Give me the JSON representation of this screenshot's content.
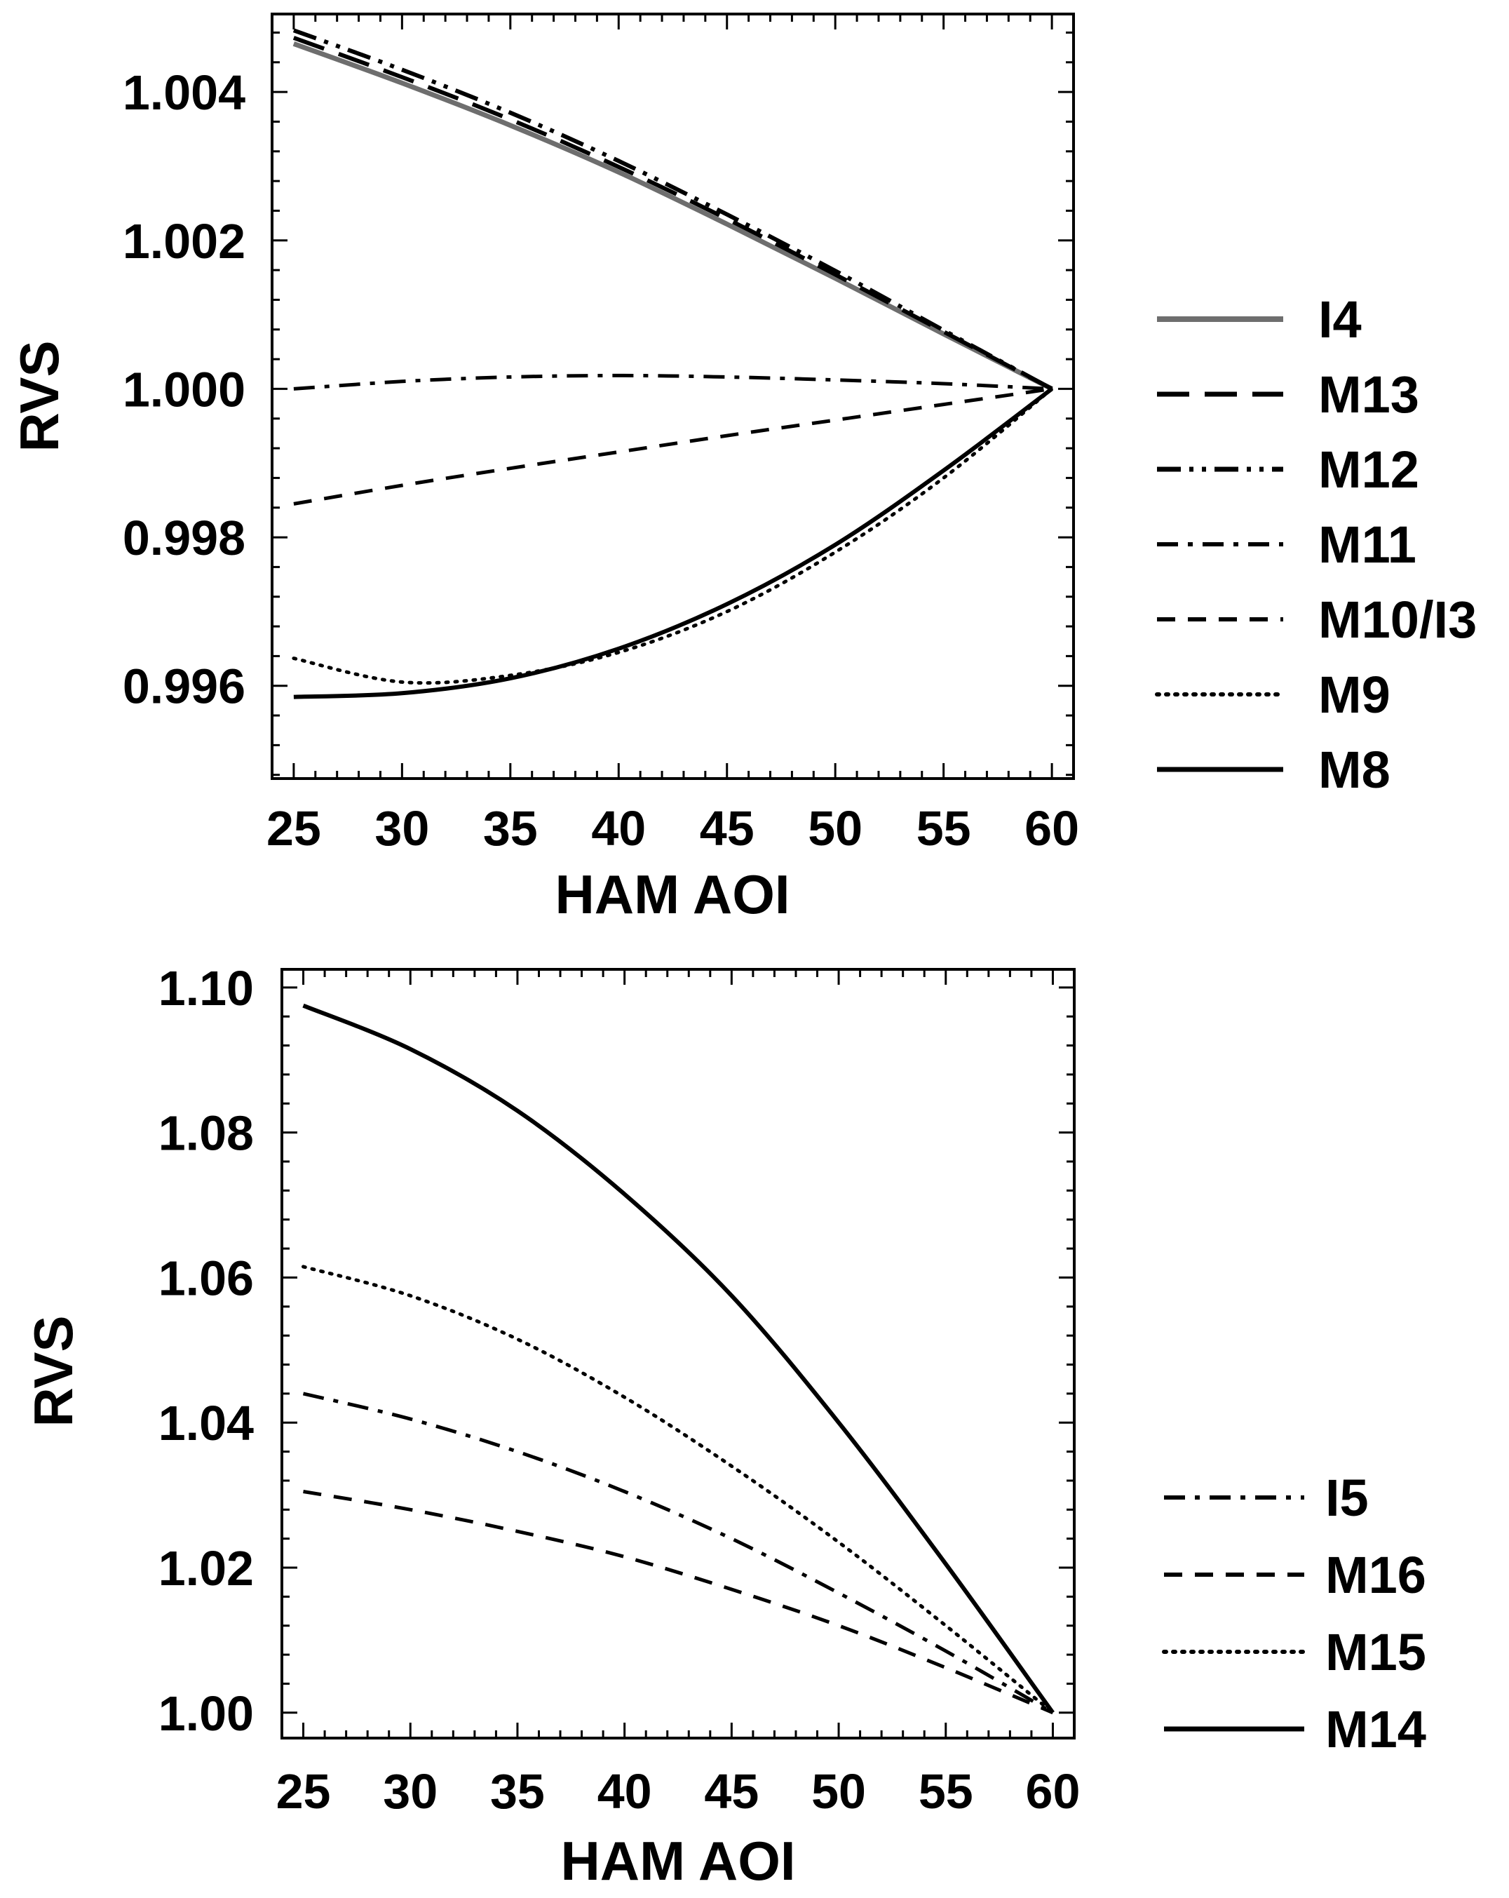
{
  "chart_data": [
    {
      "type": "line",
      "title": "",
      "xlabel": "HAM AOI",
      "ylabel": "RVS",
      "xlim": [
        24,
        61
      ],
      "ylim": [
        0.99475,
        1.00505
      ],
      "xticks": [
        "25",
        "30",
        "35",
        "40",
        "45",
        "50",
        "55",
        "60"
      ],
      "xtick_values": [
        25,
        30,
        35,
        40,
        45,
        50,
        55,
        60
      ],
      "yticks": [
        "0.996",
        "0.998",
        "1.000",
        "1.002",
        "1.004"
      ],
      "ytick_values": [
        0.996,
        0.998,
        1.0,
        1.002,
        1.004
      ],
      "legend_position": "right",
      "x": [
        25,
        30,
        35,
        40,
        45,
        50,
        55,
        60
      ],
      "series": [
        {
          "name": "I4",
          "style": "solid-gray",
          "values": [
            1.00465,
            1.00412,
            1.00355,
            1.00292,
            1.00222,
            1.00149,
            1.00074,
            1.0
          ]
        },
        {
          "name": "M13",
          "style": "longdash",
          "values": [
            1.00473,
            1.0042,
            1.00363,
            1.00299,
            1.00229,
            1.00154,
            1.00077,
            1.0
          ]
        },
        {
          "name": "M12",
          "style": "dashdotdot",
          "values": [
            1.00483,
            1.0043,
            1.00372,
            1.00307,
            1.00235,
            1.00159,
            1.00079,
            1.0
          ]
        },
        {
          "name": "M11",
          "style": "dashdot",
          "values": [
            1.0,
            1.0001,
            1.00016,
            1.00018,
            1.00016,
            1.00012,
            1.00007,
            1.0
          ]
        },
        {
          "name": "M10/I3",
          "style": "dash",
          "values": [
            0.99845,
            0.9987,
            0.99893,
            0.99915,
            0.99937,
            0.99958,
            0.99979,
            1.0
          ]
        },
        {
          "name": "M9",
          "style": "dot",
          "values": [
            0.99637,
            0.99605,
            0.99614,
            0.99645,
            0.997,
            0.9978,
            0.9988,
            1.0
          ]
        },
        {
          "name": "M8",
          "style": "solid",
          "values": [
            0.99585,
            0.9959,
            0.9961,
            0.9965,
            0.9971,
            0.9979,
            0.9989,
            1.0
          ]
        }
      ]
    },
    {
      "type": "line",
      "title": "",
      "xlabel": "HAM AOI",
      "ylabel": "RVS",
      "xlim": [
        24,
        61
      ],
      "ylim": [
        0.9965,
        1.1025
      ],
      "xticks": [
        "25",
        "30",
        "35",
        "40",
        "45",
        "50",
        "55",
        "60"
      ],
      "xtick_values": [
        25,
        30,
        35,
        40,
        45,
        50,
        55,
        60
      ],
      "yticks": [
        "1.00",
        "1.02",
        "1.04",
        "1.06",
        "1.08",
        "1.10"
      ],
      "ytick_values": [
        1.0,
        1.02,
        1.04,
        1.06,
        1.08,
        1.1
      ],
      "legend_position": "bottom-right",
      "x": [
        25,
        30,
        35,
        40,
        45,
        50,
        55,
        60
      ],
      "series": [
        {
          "name": "I5",
          "style": "dashdot",
          "values": [
            1.044,
            1.0405,
            1.036,
            1.0305,
            1.024,
            1.0165,
            1.0085,
            1.0
          ]
        },
        {
          "name": "M16",
          "style": "dash",
          "values": [
            1.0305,
            1.028,
            1.025,
            1.0215,
            1.017,
            1.012,
            1.0062,
            1.0
          ]
        },
        {
          "name": "M15",
          "style": "dot",
          "values": [
            1.0615,
            1.0575,
            1.0515,
            1.0435,
            1.034,
            1.0235,
            1.012,
            1.0
          ]
        },
        {
          "name": "M14",
          "style": "solid",
          "values": [
            1.0975,
            1.0915,
            1.083,
            1.0715,
            1.0575,
            1.04,
            1.0205,
            1.0
          ]
        }
      ]
    }
  ]
}
